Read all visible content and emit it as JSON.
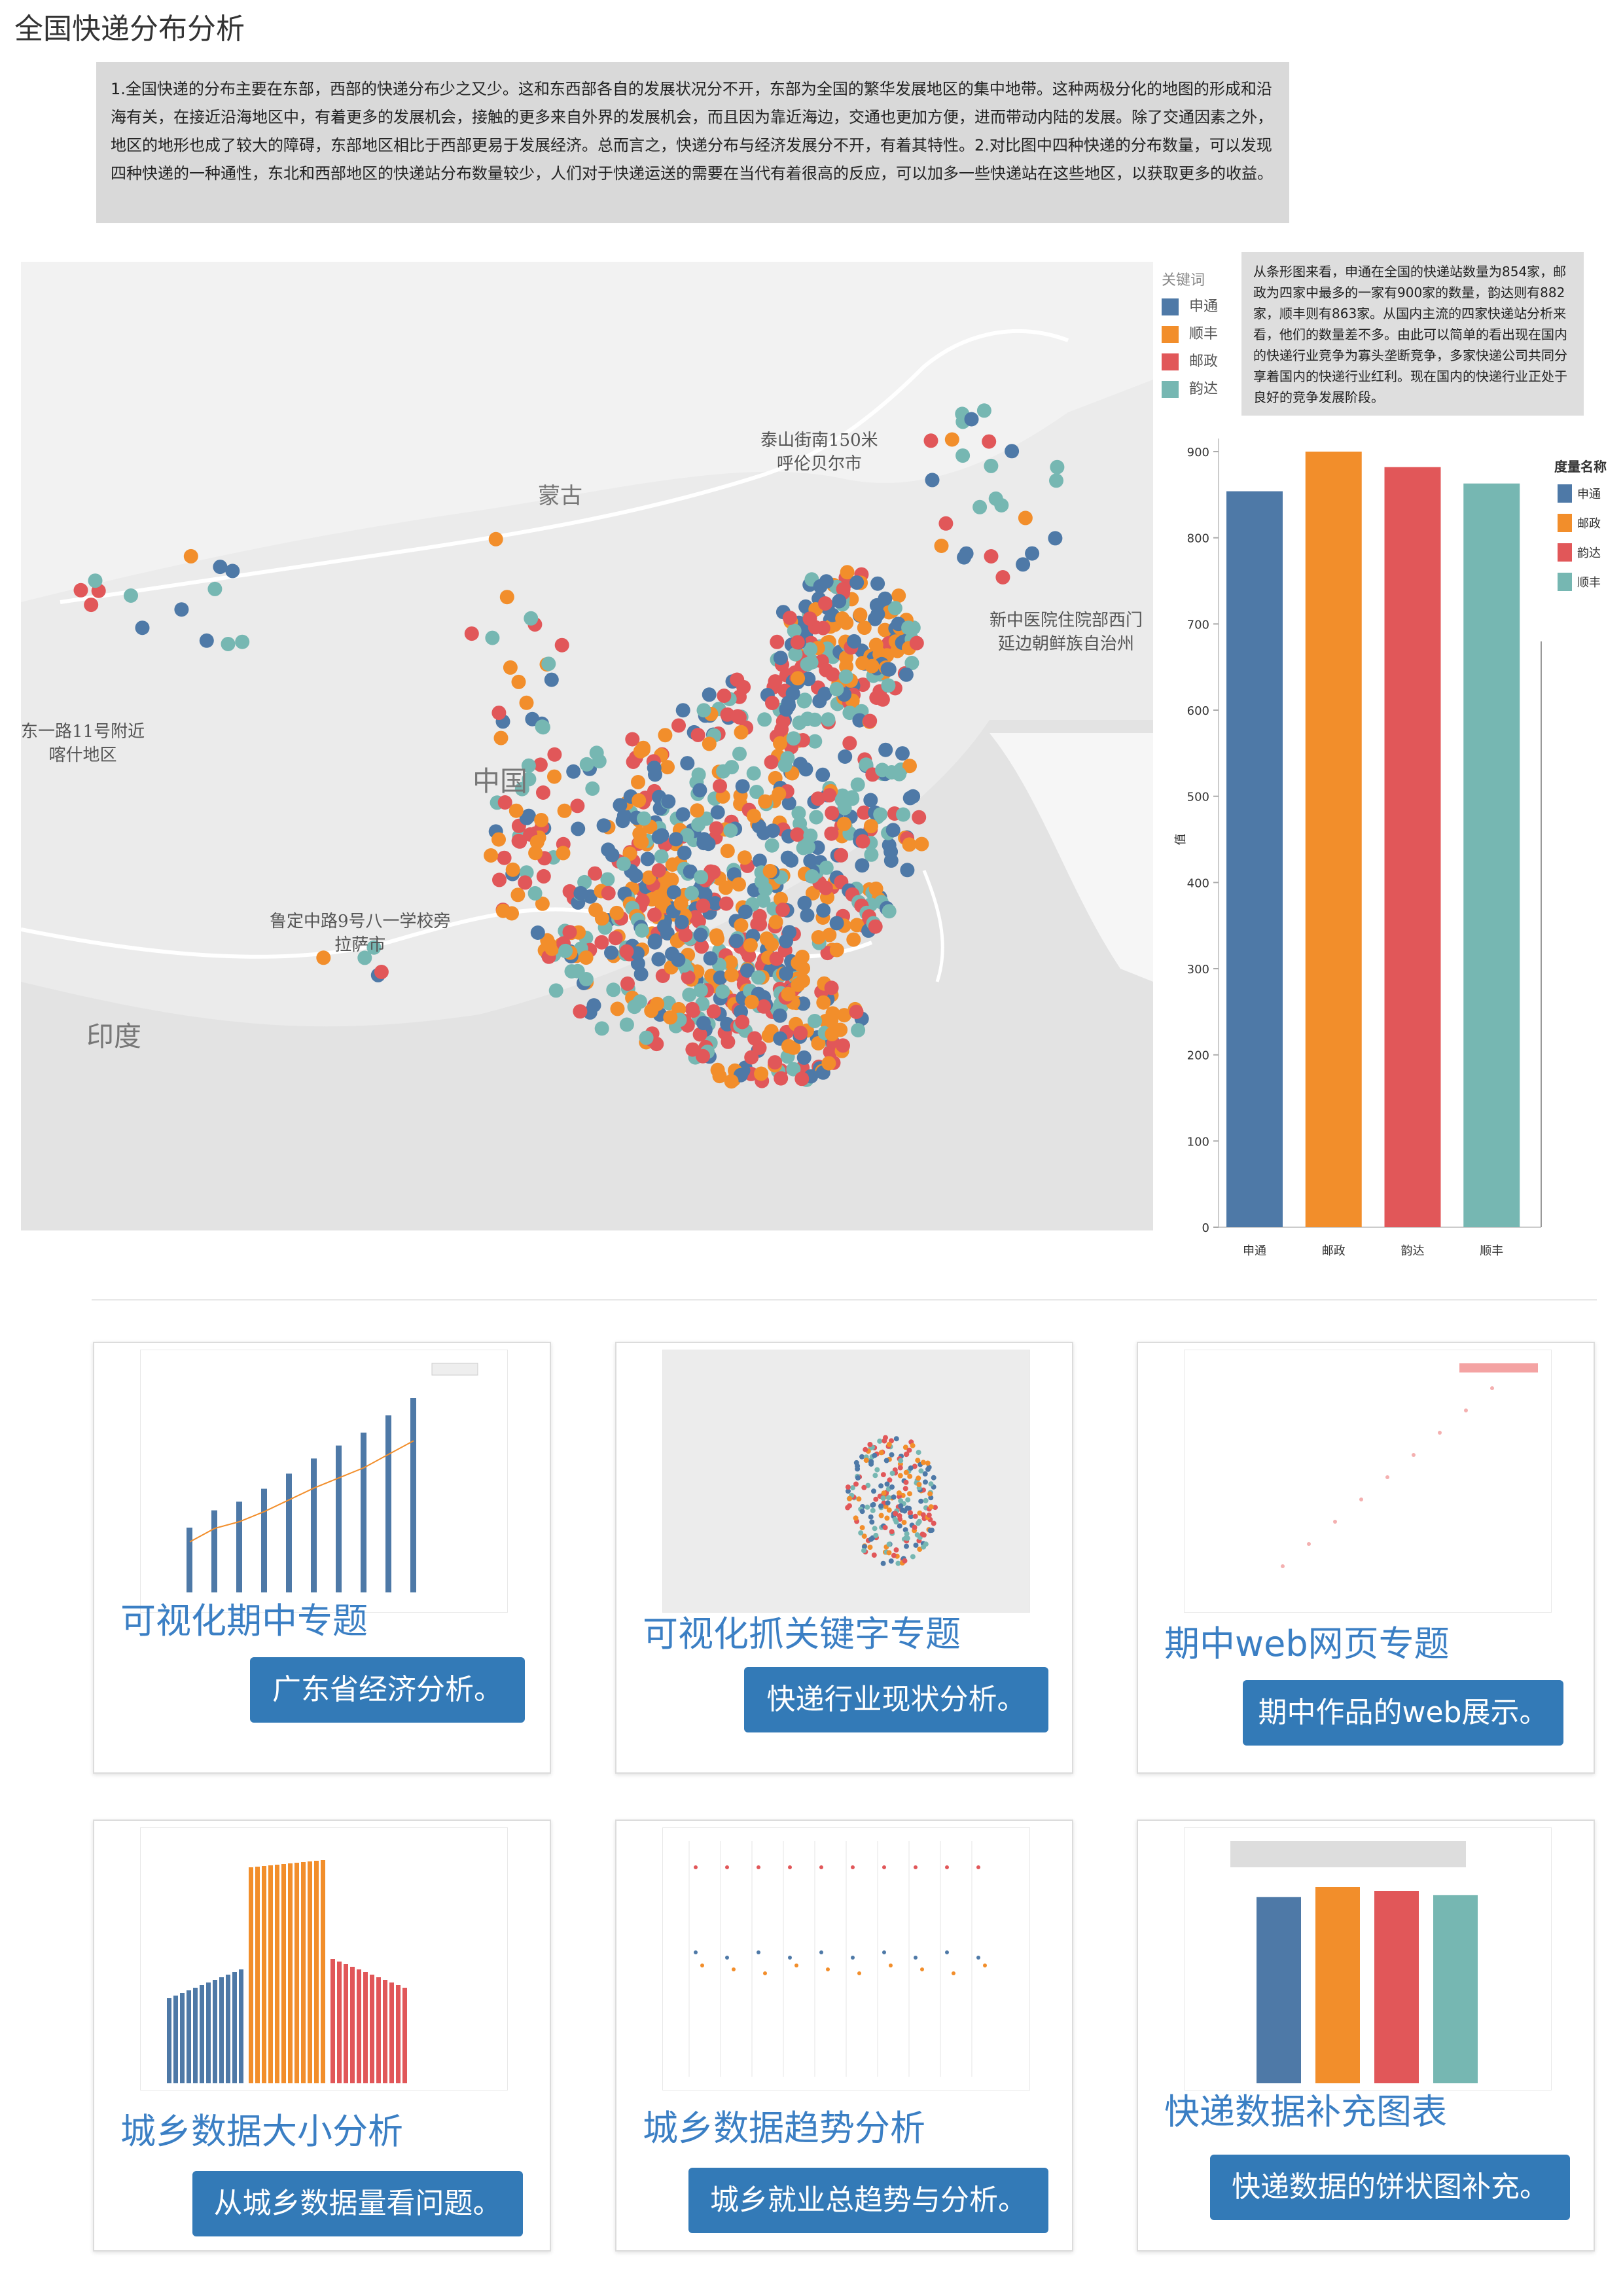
{
  "page": {
    "title": "全国快递分布分析"
  },
  "intro_text": "1.全国快递的分布主要在东部，西部的快递分布少之又少。这和东西部各自的发展状况分不开，东部为全国的繁华发展地区的集中地带。这种两极分化的地图的形成和沿海有关，在接近沿海地区中，有着更多的发展机会，接触的更多来自外界的发展机会，而且因为靠近海边，交通也更加方便，进而带动内陆的发展。除了交通因素之外，地区的地形也成了较大的障碍，东部地区相比于西部更易于发展经济。总而言之，快递分布与经济发展分不开，有着其特性。2.对比图中四种快递的分布数量，可以发现四种快递的一种通性，东北和西部地区的快递站分布数量较少，人们对于快递运送的需要在当代有着很高的反应，可以加多一些快递站在这些地区，以获取更多的收益。",
  "map": {
    "countries": {
      "mongolia": "蒙古",
      "china": "中国",
      "india": "印度"
    },
    "labels": [
      {
        "id": "hulunbuir",
        "line1": "泰山街南150米",
        "line2": "呼伦贝尔市"
      },
      {
        "id": "yanbian",
        "line1": "新中医院住院部西门",
        "line2": "延边朝鲜族自治州"
      },
      {
        "id": "kashgar",
        "line1": "东一路11号附近",
        "line2": "喀什地区"
      },
      {
        "id": "lhasa",
        "line1": "鲁定中路9号八一学校旁",
        "line2": "拉萨市"
      }
    ],
    "legend_title": "关键词",
    "legend": [
      {
        "name": "申通",
        "color": "#4e79a7"
      },
      {
        "name": "顺丰",
        "color": "#f28e2b"
      },
      {
        "name": "邮政",
        "color": "#e15759"
      },
      {
        "name": "韵达",
        "color": "#76b7b2"
      }
    ]
  },
  "note_text": "从条形图来看，申通在全国的快递站数量为854家，邮政为四家中最多的一家有900家的数量，韵达则有882家，顺丰则有863家。从国内主流的四家快递站分析来看，他们的数量差不多。由此可以简单的看出现在国内的快递行业竞争为寡头垄断竞争，多家快递公司共同分享着国内的快递行业红利。现在国内的快递行业正处于良好的竞争发展阶段。",
  "chart_data": {
    "type": "bar",
    "categories": [
      "申通",
      "邮政",
      "韵达",
      "顺丰"
    ],
    "values": [
      854,
      900,
      882,
      863
    ],
    "colors": [
      "#4e79a7",
      "#f28e2b",
      "#e15759",
      "#76b7b2"
    ],
    "ylabel": "值",
    "ylim": [
      0,
      900
    ],
    "yticks": [
      0,
      100,
      200,
      300,
      400,
      500,
      600,
      700,
      800,
      900
    ],
    "legend_title": "度量名称",
    "legend": [
      "申通",
      "邮政",
      "韵达",
      "顺丰"
    ]
  },
  "cards": [
    {
      "title": "可视化期中专题",
      "button": "广东省经济分析。"
    },
    {
      "title": "可视化抓关键字专题",
      "button": "快递行业现状分析。"
    },
    {
      "title": "期中web网页专题",
      "button": "期中作品的web展示。"
    },
    {
      "title": "城乡数据大小分析",
      "button": "从城乡数据量看问题。"
    },
    {
      "title": "城乡数据趋势分析",
      "button": "城乡就业总趋势与分析。"
    },
    {
      "title": "快递数据补充图表",
      "button": "快递数据的饼状图补充。"
    }
  ]
}
